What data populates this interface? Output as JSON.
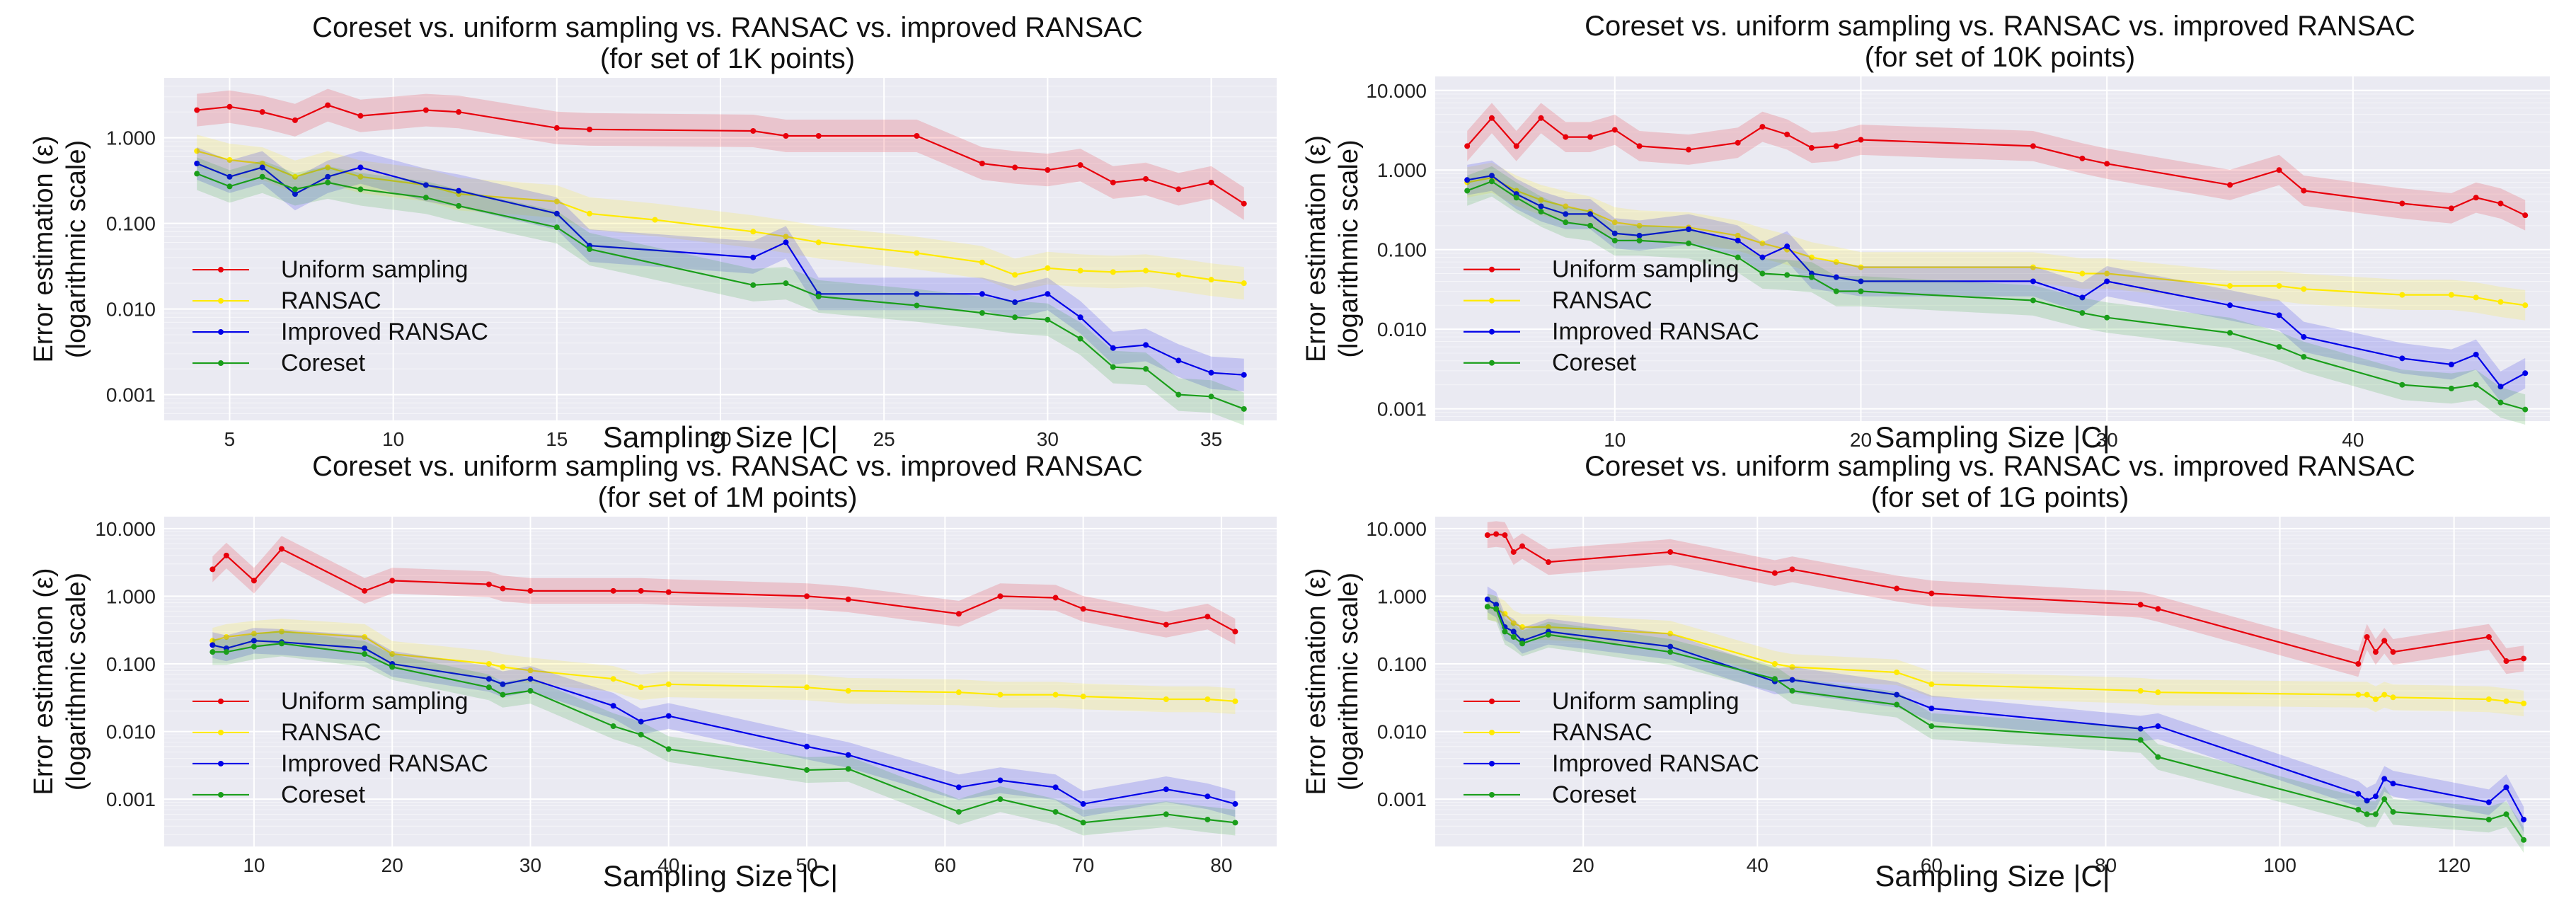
{
  "chart_data": [
    {
      "type": "line",
      "title": "Coreset vs. uniform sampling vs. RANSAC vs. improved RANSAC",
      "subtitle": "(for set of 1K points)",
      "xlabel": "Sampling Size |C|",
      "ylabel": "Error estimation (ε)",
      "ylabel2": "(logarithmic scale)",
      "xlim": [
        3,
        37
      ],
      "ylim": [
        0.0005,
        5
      ],
      "yscale": "log",
      "xticks": [
        5,
        10,
        15,
        20,
        25,
        30,
        35
      ],
      "yticks": [
        0.001,
        0.01,
        0.1,
        1
      ],
      "ytick_labels": [
        "0.001",
        "0.010",
        "0.100",
        "1.000"
      ],
      "legend": "center-left",
      "series": [
        {
          "name": "Uniform sampling",
          "color": "#e8000b",
          "x": [
            4,
            5,
            6,
            7,
            8,
            9,
            11,
            12,
            15,
            16,
            21,
            22,
            23,
            26,
            28,
            29,
            30,
            31,
            32,
            33,
            34,
            35,
            36
          ],
          "y": [
            2.1,
            2.3,
            2.0,
            1.6,
            2.4,
            1.8,
            2.1,
            2.0,
            1.3,
            1.25,
            1.2,
            1.05,
            1.05,
            1.05,
            0.5,
            0.45,
            0.42,
            0.48,
            0.3,
            0.33,
            0.25,
            0.3,
            0.17
          ]
        },
        {
          "name": "RANSAC",
          "color": "#ffea00",
          "x": [
            4,
            5,
            6,
            7,
            8,
            9,
            11,
            12,
            15,
            16,
            18,
            21,
            22,
            23,
            26,
            28,
            29,
            30,
            31,
            32,
            33,
            34,
            35,
            36
          ],
          "y": [
            0.7,
            0.55,
            0.5,
            0.35,
            0.45,
            0.35,
            0.28,
            0.22,
            0.18,
            0.13,
            0.11,
            0.08,
            0.07,
            0.06,
            0.045,
            0.035,
            0.025,
            0.03,
            0.028,
            0.027,
            0.028,
            0.025,
            0.022,
            0.02
          ]
        },
        {
          "name": "Improved RANSAC",
          "color": "#0000e8",
          "x": [
            4,
            5,
            6,
            7,
            8,
            9,
            11,
            12,
            15,
            16,
            21,
            22,
            23,
            26,
            28,
            29,
            30,
            31,
            32,
            33,
            34,
            35,
            36
          ],
          "y": [
            0.5,
            0.35,
            0.45,
            0.22,
            0.35,
            0.45,
            0.28,
            0.24,
            0.13,
            0.055,
            0.04,
            0.06,
            0.015,
            0.015,
            0.015,
            0.012,
            0.015,
            0.008,
            0.0035,
            0.0038,
            0.0025,
            0.0018,
            0.0017
          ]
        },
        {
          "name": "Coreset",
          "color": "#1a9e1a",
          "x": [
            4,
            5,
            6,
            7,
            8,
            9,
            11,
            12,
            15,
            16,
            21,
            22,
            23,
            26,
            28,
            29,
            30,
            31,
            32,
            33,
            34,
            35,
            36
          ],
          "y": [
            0.38,
            0.27,
            0.35,
            0.25,
            0.3,
            0.25,
            0.2,
            0.16,
            0.09,
            0.05,
            0.019,
            0.02,
            0.014,
            0.011,
            0.009,
            0.008,
            0.0075,
            0.0045,
            0.0021,
            0.002,
            0.001,
            0.00095,
            0.00068
          ]
        }
      ]
    },
    {
      "type": "line",
      "title": "Coreset vs. uniform sampling vs. RANSAC vs. improved RANSAC",
      "subtitle": "(for set of 10K points)",
      "xlabel": "Sampling Size |C|",
      "ylabel": "Error estimation (ε)",
      "ylabel2": "(logarithmic scale)",
      "xlim": [
        2.7,
        48
      ],
      "ylim": [
        0.0007,
        15
      ],
      "yscale": "log",
      "xticks": [
        10,
        20,
        30,
        40
      ],
      "yticks": [
        0.001,
        0.01,
        0.1,
        1,
        10
      ],
      "ytick_labels": [
        "0.001",
        "0.010",
        "0.100",
        "1.000",
        "10.000"
      ],
      "legend": "center-left",
      "series": [
        {
          "name": "Uniform sampling",
          "color": "#e8000b",
          "x": [
            4,
            5,
            6,
            7,
            8,
            9,
            10,
            11,
            13,
            15,
            16,
            17,
            18,
            19,
            20,
            27,
            29,
            30,
            35,
            37,
            38,
            42,
            44,
            45,
            46,
            47
          ],
          "y": [
            2.0,
            4.5,
            2.0,
            4.5,
            2.6,
            2.6,
            3.2,
            2.0,
            1.8,
            2.2,
            3.5,
            2.8,
            1.9,
            2.0,
            2.4,
            2.0,
            1.4,
            1.2,
            0.65,
            1.0,
            0.55,
            0.38,
            0.33,
            0.45,
            0.38,
            0.27
          ]
        },
        {
          "name": "RANSAC",
          "color": "#ffea00",
          "x": [
            4,
            5,
            6,
            7,
            8,
            9,
            10,
            11,
            13,
            15,
            16,
            17,
            18,
            19,
            20,
            27,
            29,
            30,
            35,
            37,
            38,
            42,
            44,
            45,
            46,
            47
          ],
          "y": [
            0.7,
            0.8,
            0.55,
            0.42,
            0.35,
            0.3,
            0.22,
            0.2,
            0.19,
            0.15,
            0.12,
            0.1,
            0.08,
            0.07,
            0.06,
            0.06,
            0.05,
            0.05,
            0.035,
            0.035,
            0.032,
            0.027,
            0.027,
            0.025,
            0.022,
            0.02
          ]
        },
        {
          "name": "Improved RANSAC",
          "color": "#0000e8",
          "x": [
            4,
            5,
            6,
            7,
            8,
            9,
            10,
            11,
            13,
            15,
            16,
            17,
            18,
            19,
            20,
            27,
            29,
            30,
            35,
            37,
            38,
            42,
            44,
            45,
            46,
            47
          ],
          "y": [
            0.75,
            0.85,
            0.5,
            0.35,
            0.28,
            0.28,
            0.16,
            0.15,
            0.18,
            0.13,
            0.08,
            0.11,
            0.05,
            0.045,
            0.04,
            0.04,
            0.025,
            0.04,
            0.02,
            0.015,
            0.008,
            0.0043,
            0.0036,
            0.0048,
            0.0019,
            0.0028
          ]
        },
        {
          "name": "Coreset",
          "color": "#1a9e1a",
          "x": [
            4,
            5,
            6,
            7,
            8,
            9,
            10,
            11,
            13,
            15,
            16,
            17,
            18,
            19,
            20,
            27,
            29,
            30,
            35,
            37,
            38,
            42,
            44,
            45,
            46,
            47
          ],
          "y": [
            0.55,
            0.72,
            0.45,
            0.3,
            0.22,
            0.2,
            0.13,
            0.13,
            0.12,
            0.08,
            0.05,
            0.048,
            0.045,
            0.03,
            0.03,
            0.023,
            0.016,
            0.014,
            0.009,
            0.006,
            0.0045,
            0.002,
            0.0018,
            0.002,
            0.0012,
            0.00098
          ]
        }
      ]
    },
    {
      "type": "line",
      "title": "Coreset vs. uniform sampling vs. RANSAC vs. improved RANSAC",
      "subtitle": "(for set of 1M points)",
      "xlabel": "Sampling Size |C|",
      "ylabel": "Error estimation (ε)",
      "ylabel2": "(logarithmic scale)",
      "xlim": [
        3.5,
        84
      ],
      "ylim": [
        0.0002,
        15
      ],
      "yscale": "log",
      "xticks": [
        10,
        20,
        30,
        40,
        50,
        60,
        70,
        80
      ],
      "yticks": [
        0.001,
        0.01,
        0.1,
        1,
        10
      ],
      "ytick_labels": [
        "0.001",
        "0.010",
        "0.100",
        "1.000",
        "10.000"
      ],
      "legend": "center-left",
      "series": [
        {
          "name": "Uniform sampling",
          "color": "#e8000b",
          "x": [
            7,
            8,
            10,
            12,
            18,
            20,
            27,
            28,
            30,
            36,
            38,
            40,
            50,
            53,
            61,
            64,
            68,
            70,
            76,
            79,
            81
          ],
          "y": [
            2.5,
            4.0,
            1.7,
            5.0,
            1.2,
            1.7,
            1.5,
            1.3,
            1.2,
            1.2,
            1.2,
            1.15,
            1.0,
            0.9,
            0.55,
            1.0,
            0.95,
            0.65,
            0.38,
            0.5,
            0.3
          ]
        },
        {
          "name": "RANSAC",
          "color": "#ffea00",
          "x": [
            7,
            8,
            10,
            12,
            18,
            20,
            27,
            28,
            30,
            36,
            38,
            40,
            50,
            53,
            61,
            64,
            68,
            70,
            76,
            79,
            81
          ],
          "y": [
            0.22,
            0.25,
            0.28,
            0.3,
            0.25,
            0.14,
            0.1,
            0.09,
            0.08,
            0.06,
            0.045,
            0.05,
            0.045,
            0.04,
            0.038,
            0.035,
            0.035,
            0.033,
            0.03,
            0.03,
            0.028
          ]
        },
        {
          "name": "Improved RANSAC",
          "color": "#0000e8",
          "x": [
            7,
            8,
            10,
            12,
            18,
            20,
            27,
            28,
            30,
            36,
            38,
            40,
            50,
            53,
            61,
            64,
            68,
            70,
            76,
            79,
            81
          ],
          "y": [
            0.19,
            0.17,
            0.22,
            0.21,
            0.17,
            0.1,
            0.06,
            0.05,
            0.06,
            0.024,
            0.014,
            0.017,
            0.006,
            0.0045,
            0.0015,
            0.0019,
            0.0015,
            0.00085,
            0.0014,
            0.0011,
            0.00085
          ]
        },
        {
          "name": "Coreset",
          "color": "#1a9e1a",
          "x": [
            7,
            8,
            10,
            12,
            18,
            20,
            27,
            28,
            30,
            36,
            38,
            40,
            50,
            53,
            61,
            64,
            68,
            70,
            76,
            79,
            81
          ],
          "y": [
            0.15,
            0.15,
            0.18,
            0.2,
            0.14,
            0.09,
            0.045,
            0.035,
            0.04,
            0.012,
            0.009,
            0.0055,
            0.0027,
            0.0028,
            0.00065,
            0.001,
            0.00065,
            0.00045,
            0.0006,
            0.0005,
            0.00045
          ]
        }
      ]
    },
    {
      "type": "line",
      "title": "Coreset vs. uniform sampling vs. RANSAC vs. improved RANSAC",
      "subtitle": "(for set of 1G points)",
      "xlabel": "Sampling Size |C|",
      "ylabel": "Error estimation (ε)",
      "ylabel2": "(logarithmic scale)",
      "xlim": [
        3,
        131
      ],
      "ylim": [
        0.0002,
        15
      ],
      "yscale": "log",
      "xticks": [
        20,
        40,
        60,
        80,
        100,
        120
      ],
      "yticks": [
        0.001,
        0.01,
        0.1,
        1,
        10
      ],
      "ytick_labels": [
        "0.001",
        "0.010",
        "0.100",
        "1.000",
        "10.000"
      ],
      "legend": "center-left",
      "series": [
        {
          "name": "Uniform sampling",
          "color": "#e8000b",
          "x": [
            9,
            10,
            11,
            12,
            13,
            16,
            30,
            42,
            44,
            56,
            60,
            84,
            86,
            109,
            110,
            111,
            112,
            113,
            124,
            126,
            128
          ],
          "y": [
            8.0,
            8.3,
            8.0,
            4.5,
            5.5,
            3.2,
            4.5,
            2.2,
            2.5,
            1.3,
            1.1,
            0.75,
            0.65,
            0.1,
            0.25,
            0.15,
            0.22,
            0.15,
            0.25,
            0.11,
            0.12
          ]
        },
        {
          "name": "RANSAC",
          "color": "#ffea00",
          "x": [
            9,
            10,
            11,
            12,
            13,
            16,
            30,
            42,
            44,
            56,
            60,
            84,
            86,
            109,
            110,
            111,
            112,
            113,
            124,
            126,
            128
          ],
          "y": [
            0.7,
            0.65,
            0.55,
            0.4,
            0.35,
            0.35,
            0.28,
            0.1,
            0.09,
            0.075,
            0.05,
            0.04,
            0.038,
            0.035,
            0.035,
            0.03,
            0.035,
            0.032,
            0.03,
            0.028,
            0.026
          ]
        },
        {
          "name": "Improved RANSAC",
          "color": "#0000e8",
          "x": [
            9,
            10,
            11,
            12,
            13,
            16,
            30,
            42,
            44,
            56,
            60,
            84,
            86,
            109,
            110,
            111,
            112,
            113,
            124,
            126,
            128
          ],
          "y": [
            0.9,
            0.75,
            0.35,
            0.3,
            0.22,
            0.3,
            0.18,
            0.055,
            0.058,
            0.035,
            0.022,
            0.011,
            0.012,
            0.0012,
            0.00095,
            0.0011,
            0.002,
            0.0017,
            0.0009,
            0.0015,
            0.0005
          ]
        },
        {
          "name": "Coreset",
          "color": "#1a9e1a",
          "x": [
            9,
            10,
            11,
            12,
            13,
            16,
            30,
            42,
            44,
            56,
            60,
            84,
            86,
            109,
            110,
            111,
            112,
            113,
            124,
            126,
            128
          ],
          "y": [
            0.7,
            0.65,
            0.3,
            0.25,
            0.2,
            0.27,
            0.15,
            0.06,
            0.04,
            0.025,
            0.012,
            0.0075,
            0.0042,
            0.0007,
            0.0006,
            0.0006,
            0.001,
            0.00065,
            0.0005,
            0.0006,
            0.00025
          ]
        }
      ]
    }
  ]
}
